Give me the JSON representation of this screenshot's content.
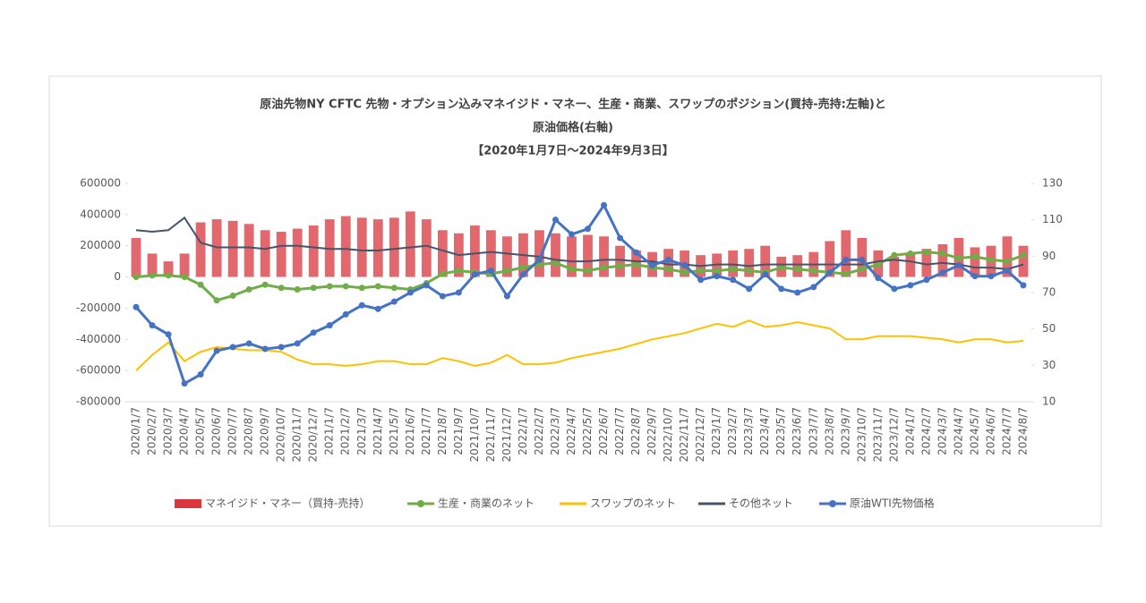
{
  "chart_data": {
    "type": "combo",
    "title_lines": [
      "原油先物NY CFTC 先物・オプション込みマネイジド・マネー、生産・商業、スワップのポジション(買持-売持:左軸)と",
      "原油価格(右軸)",
      "【2020年1月7日～2024年9月3日】"
    ],
    "categories": [
      "2020/1/7",
      "2020/2/7",
      "2020/3/7",
      "2020/4/7",
      "2020/5/7",
      "2020/6/7",
      "2020/7/7",
      "2020/8/7",
      "2020/9/7",
      "2020/10/7",
      "2020/11/7",
      "2020/12/7",
      "2021/1/7",
      "2021/2/7",
      "2021/3/7",
      "2021/4/7",
      "2021/5/7",
      "2021/6/7",
      "2021/7/7",
      "2021/8/7",
      "2021/9/7",
      "2021/10/7",
      "2021/11/7",
      "2021/12/7",
      "2022/1/7",
      "2022/2/7",
      "2022/3/7",
      "2022/4/7",
      "2022/5/7",
      "2022/6/7",
      "2022/7/7",
      "2022/8/7",
      "2022/9/7",
      "2022/10/7",
      "2022/11/7",
      "2022/12/7",
      "2023/1/7",
      "2023/2/7",
      "2023/3/7",
      "2023/4/7",
      "2023/5/7",
      "2023/6/7",
      "2023/7/7",
      "2023/8/7",
      "2023/9/7",
      "2023/10/7",
      "2023/11/7",
      "2023/12/7",
      "2024/1/7",
      "2024/2/7",
      "2024/3/7",
      "2024/4/7",
      "2024/5/7",
      "2024/6/7",
      "2024/7/7",
      "2024/8/7"
    ],
    "ylim": [
      -800000,
      600000
    ],
    "yticks": [
      -800000,
      -600000,
      -400000,
      -200000,
      0,
      200000,
      400000,
      600000
    ],
    "y2lim": [
      10,
      130
    ],
    "y2ticks": [
      10,
      30,
      50,
      70,
      90,
      110,
      130
    ],
    "series": [
      {
        "name": "マネイジド・マネー（買持-売持）",
        "type": "bar",
        "color": "#d9363e",
        "values": [
          250000,
          150000,
          100000,
          150000,
          350000,
          370000,
          360000,
          340000,
          300000,
          290000,
          310000,
          330000,
          370000,
          390000,
          380000,
          370000,
          380000,
          420000,
          370000,
          300000,
          280000,
          330000,
          300000,
          260000,
          280000,
          300000,
          280000,
          260000,
          270000,
          260000,
          200000,
          170000,
          160000,
          180000,
          170000,
          140000,
          150000,
          170000,
          180000,
          200000,
          130000,
          140000,
          160000,
          230000,
          300000,
          250000,
          170000,
          130000,
          150000,
          180000,
          210000,
          250000,
          190000,
          200000,
          260000,
          200000
        ]
      },
      {
        "name": "生産・商業のネット",
        "type": "line",
        "marker": true,
        "color": "#70ad47",
        "values": [
          0,
          10000,
          10000,
          0,
          -50000,
          -150000,
          -120000,
          -80000,
          -50000,
          -70000,
          -80000,
          -70000,
          -60000,
          -60000,
          -70000,
          -60000,
          -70000,
          -80000,
          -40000,
          20000,
          40000,
          30000,
          20000,
          40000,
          60000,
          80000,
          90000,
          50000,
          40000,
          60000,
          70000,
          80000,
          60000,
          50000,
          30000,
          40000,
          40000,
          50000,
          40000,
          30000,
          60000,
          50000,
          40000,
          30000,
          20000,
          50000,
          80000,
          140000,
          150000,
          160000,
          150000,
          120000,
          130000,
          110000,
          100000,
          140000
        ]
      },
      {
        "name": "スワップのネット",
        "type": "line",
        "color": "#ffc000",
        "values": [
          -600000,
          -500000,
          -420000,
          -540000,
          -480000,
          -450000,
          -460000,
          -470000,
          -470000,
          -480000,
          -530000,
          -560000,
          -560000,
          -570000,
          -560000,
          -540000,
          -540000,
          -560000,
          -560000,
          -520000,
          -540000,
          -570000,
          -550000,
          -500000,
          -560000,
          -560000,
          -550000,
          -520000,
          -500000,
          -480000,
          -460000,
          -430000,
          -400000,
          -380000,
          -360000,
          -330000,
          -300000,
          -320000,
          -280000,
          -320000,
          -310000,
          -290000,
          -310000,
          -330000,
          -400000,
          -400000,
          -380000,
          -380000,
          -380000,
          -390000,
          -400000,
          -420000,
          -400000,
          -400000,
          -420000,
          -410000
        ]
      },
      {
        "name": "その他ネット",
        "type": "line",
        "color": "#44546a",
        "values": [
          300000,
          290000,
          300000,
          380000,
          220000,
          190000,
          190000,
          190000,
          180000,
          200000,
          200000,
          190000,
          180000,
          180000,
          170000,
          170000,
          180000,
          190000,
          200000,
          170000,
          140000,
          150000,
          160000,
          150000,
          140000,
          130000,
          110000,
          100000,
          100000,
          110000,
          110000,
          100000,
          100000,
          80000,
          80000,
          70000,
          80000,
          80000,
          70000,
          80000,
          80000,
          80000,
          80000,
          80000,
          80000,
          80000,
          100000,
          110000,
          100000,
          80000,
          90000,
          80000,
          60000,
          60000,
          50000,
          80000
        ]
      },
      {
        "name": "原油WTI先物価格",
        "type": "line",
        "marker": true,
        "axis": "y2",
        "color": "#4472c4",
        "values": [
          62,
          52,
          47,
          20,
          25,
          38,
          40,
          42,
          39,
          40,
          42,
          48,
          52,
          58,
          63,
          61,
          65,
          70,
          74,
          68,
          70,
          80,
          82,
          68,
          80,
          88,
          110,
          102,
          105,
          118,
          100,
          92,
          85,
          88,
          85,
          77,
          79,
          77,
          72,
          80,
          72,
          70,
          73,
          81,
          88,
          88,
          78,
          72,
          74,
          77,
          81,
          85,
          79,
          79,
          82,
          74
        ]
      }
    ]
  }
}
